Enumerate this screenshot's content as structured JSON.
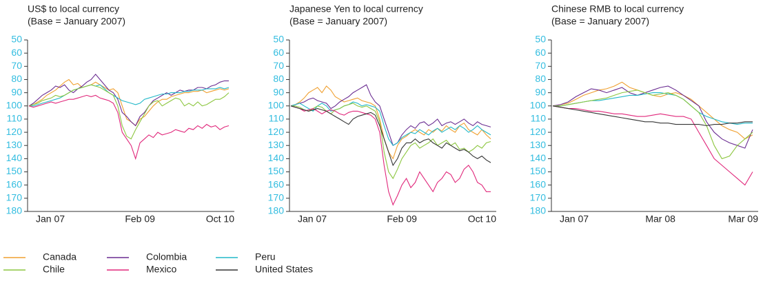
{
  "chart_data": [
    {
      "type": "line",
      "title": "US$ to local currency",
      "subtitle": "(Base = January 2007)",
      "y_inverted": true,
      "ylim": [
        50,
        180
      ],
      "yticks": [
        50,
        60,
        70,
        80,
        90,
        100,
        110,
        120,
        130,
        140,
        150,
        160,
        170,
        180
      ],
      "categories": [
        "Jan 07",
        null,
        null,
        null,
        null,
        null,
        null,
        null,
        null,
        null,
        null,
        null,
        null,
        null,
        null,
        null,
        null,
        null,
        null,
        null,
        null,
        null,
        null,
        null,
        null,
        "Feb 09",
        null,
        null,
        null,
        null,
        null,
        null,
        null,
        null,
        null,
        null,
        null,
        null,
        null,
        null,
        null,
        null,
        null,
        null,
        null,
        "Oct 10"
      ],
      "series": [
        {
          "color": "#f0a030",
          "values": [
            100,
            99,
            97,
            95,
            92,
            90,
            88,
            85,
            82,
            80,
            84,
            83,
            86,
            85,
            84,
            82,
            84,
            86,
            88,
            87,
            90,
            100,
            110,
            112,
            115,
            110,
            108,
            104,
            100,
            97,
            95,
            95,
            93,
            92,
            91,
            90,
            90,
            89,
            89,
            88,
            90,
            89,
            88,
            87,
            88,
            87
          ]
        },
        {
          "color": "#6a2c91",
          "values": [
            100,
            98,
            95,
            92,
            90,
            88,
            85,
            86,
            84,
            88,
            90,
            87,
            85,
            82,
            80,
            76,
            80,
            84,
            88,
            90,
            95,
            105,
            108,
            112,
            115,
            108,
            105,
            100,
            96,
            94,
            92,
            90,
            92,
            90,
            88,
            89,
            88,
            88,
            86,
            86,
            87,
            85,
            84,
            82,
            81,
            81
          ]
        },
        {
          "color": "#20b8c8",
          "values": [
            100,
            100,
            99,
            98,
            97,
            96,
            95,
            94,
            92,
            90,
            88,
            87,
            86,
            85,
            84,
            85,
            84,
            87,
            90,
            92,
            94,
            96,
            97,
            98,
            99,
            98,
            95,
            94,
            93,
            92,
            91,
            91,
            90,
            90,
            90,
            89,
            89,
            88,
            88,
            88,
            87,
            87,
            87,
            86,
            87,
            86
          ]
        },
        {
          "color": "#8cc63f",
          "values": [
            100,
            99,
            98,
            96,
            95,
            94,
            92,
            93,
            92,
            90,
            88,
            87,
            86,
            85,
            84,
            85,
            86,
            88,
            90,
            92,
            100,
            115,
            123,
            125,
            118,
            112,
            106,
            100,
            97,
            96,
            100,
            98,
            96,
            94,
            95,
            100,
            98,
            100,
            97,
            100,
            99,
            97,
            95,
            95,
            93,
            90
          ]
        },
        {
          "color": "#e0267a",
          "values": [
            100,
            101,
            100,
            99,
            98,
            97,
            98,
            97,
            96,
            95,
            95,
            94,
            93,
            92,
            93,
            92,
            94,
            95,
            96,
            98,
            105,
            120,
            125,
            130,
            140,
            128,
            125,
            122,
            124,
            120,
            122,
            121,
            120,
            118,
            119,
            120,
            117,
            118,
            115,
            117,
            114,
            116,
            115,
            118,
            116,
            115
          ]
        }
      ]
    },
    {
      "type": "line",
      "title": "Japanese Yen to local currency",
      "subtitle": "(Base = January 2007)",
      "y_inverted": true,
      "ylim": [
        50,
        180
      ],
      "yticks": [
        50,
        60,
        70,
        80,
        90,
        100,
        110,
        120,
        130,
        140,
        150,
        160,
        170,
        180
      ],
      "categories": [
        "Jan 07",
        null,
        null,
        null,
        null,
        null,
        null,
        null,
        null,
        null,
        null,
        null,
        null,
        null,
        null,
        null,
        null,
        null,
        null,
        null,
        null,
        null,
        null,
        null,
        null,
        "Feb 09",
        null,
        null,
        null,
        null,
        null,
        null,
        null,
        null,
        null,
        null,
        null,
        null,
        null,
        null,
        null,
        null,
        null,
        null,
        null,
        "Oct 10"
      ],
      "series": [
        {
          "name": "Canada",
          "color": "#f0a030",
          "values": [
            100,
            99,
            97,
            94,
            90,
            88,
            86,
            90,
            85,
            88,
            93,
            95,
            97,
            96,
            95,
            94,
            96,
            97,
            98,
            100,
            110,
            125,
            135,
            140,
            130,
            125,
            123,
            120,
            118,
            120,
            122,
            118,
            120,
            117,
            119,
            115,
            118,
            120,
            115,
            113,
            118,
            120,
            122,
            118,
            122,
            125
          ]
        },
        {
          "name": "Colombia",
          "color": "#6a2c91",
          "values": [
            100,
            99,
            98,
            97,
            95,
            94,
            96,
            97,
            98,
            102,
            100,
            97,
            95,
            93,
            90,
            88,
            86,
            84,
            92,
            97,
            100,
            110,
            120,
            130,
            128,
            122,
            118,
            115,
            117,
            113,
            112,
            115,
            113,
            110,
            115,
            113,
            112,
            114,
            112,
            110,
            113,
            115,
            112,
            114,
            115,
            116
          ]
        },
        {
          "name": "Peru",
          "color": "#20b8c8",
          "values": [
            100,
            99,
            98,
            100,
            102,
            104,
            100,
            98,
            100,
            104,
            103,
            102,
            100,
            99,
            97,
            98,
            100,
            99,
            100,
            101,
            104,
            115,
            125,
            130,
            128,
            124,
            122,
            120,
            121,
            118,
            120,
            122,
            119,
            117,
            120,
            118,
            116,
            118,
            115,
            117,
            120,
            118,
            115,
            118,
            120,
            122
          ]
        },
        {
          "name": "Chile",
          "color": "#8cc63f",
          "values": [
            100,
            100,
            101,
            103,
            104,
            102,
            100,
            101,
            104,
            106,
            103,
            102,
            100,
            99,
            98,
            100,
            101,
            100,
            102,
            104,
            112,
            135,
            150,
            155,
            148,
            140,
            135,
            130,
            128,
            132,
            130,
            128,
            125,
            130,
            128,
            126,
            130,
            128,
            133,
            132,
            135,
            133,
            130,
            132,
            128,
            127
          ]
        },
        {
          "name": "Mexico",
          "color": "#e0267a",
          "values": [
            100,
            101,
            102,
            104,
            103,
            102,
            104,
            106,
            104,
            103,
            104,
            106,
            107,
            105,
            104,
            104,
            105,
            106,
            107,
            110,
            120,
            145,
            165,
            175,
            168,
            160,
            155,
            162,
            158,
            150,
            155,
            160,
            165,
            158,
            155,
            150,
            152,
            158,
            155,
            148,
            145,
            150,
            158,
            160,
            165,
            165
          ]
        },
        {
          "name": "United States",
          "color": "#333333",
          "values": [
            100,
            101,
            102,
            103,
            104,
            103,
            102,
            103,
            104,
            106,
            108,
            110,
            112,
            114,
            110,
            108,
            107,
            106,
            105,
            107,
            115,
            125,
            135,
            145,
            140,
            132,
            128,
            128,
            125,
            128,
            126,
            125,
            128,
            130,
            132,
            128,
            130,
            132,
            134,
            133,
            135,
            138,
            140,
            138,
            141,
            143
          ]
        }
      ]
    },
    {
      "type": "line",
      "title": "Chinese RMB to local currency",
      "subtitle": "(Base = January 2007)",
      "y_inverted": true,
      "ylim": [
        50,
        180
      ],
      "yticks": [
        50,
        60,
        70,
        80,
        90,
        100,
        110,
        120,
        130,
        140,
        150,
        160,
        170,
        180
      ],
      "categories": [
        "Jan 07",
        null,
        null,
        null,
        null,
        null,
        null,
        null,
        null,
        null,
        null,
        null,
        null,
        null,
        "Mar 08",
        null,
        null,
        null,
        null,
        null,
        null,
        null,
        null,
        null,
        null,
        null,
        "Mar 09"
      ],
      "series": [
        {
          "color": "#f0a030",
          "values": [
            100,
            99,
            98,
            95,
            92,
            90,
            88,
            87,
            85,
            82,
            86,
            88,
            90,
            92,
            93,
            91,
            90,
            92,
            95,
            100,
            105,
            110,
            115,
            118,
            120,
            125,
            122
          ]
        },
        {
          "color": "#6a2c91",
          "values": [
            100,
            99,
            97,
            93,
            90,
            87,
            88,
            90,
            88,
            86,
            90,
            92,
            90,
            88,
            86,
            85,
            88,
            92,
            96,
            100,
            112,
            120,
            125,
            128,
            130,
            132,
            118
          ]
        },
        {
          "color": "#20b8c8",
          "values": [
            100,
            100,
            99,
            98,
            97,
            96,
            96,
            95,
            94,
            93,
            92,
            92,
            91,
            90,
            90,
            91,
            92,
            95,
            100,
            105,
            108,
            110,
            112,
            113,
            114,
            113,
            113
          ]
        },
        {
          "color": "#8cc63f",
          "values": [
            100,
            100,
            99,
            98,
            97,
            96,
            95,
            94,
            92,
            90,
            89,
            88,
            90,
            92,
            91,
            90,
            92,
            95,
            100,
            105,
            115,
            130,
            140,
            138,
            130,
            125,
            120
          ]
        },
        {
          "color": "#e0267a",
          "values": [
            100,
            101,
            102,
            102,
            103,
            104,
            104,
            105,
            106,
            106,
            107,
            108,
            108,
            107,
            106,
            107,
            108,
            108,
            110,
            120,
            130,
            140,
            145,
            150,
            155,
            160,
            150
          ]
        },
        {
          "color": "#333333",
          "values": [
            100,
            101,
            102,
            103,
            104,
            105,
            106,
            107,
            108,
            109,
            110,
            111,
            112,
            112,
            113,
            113,
            114,
            114,
            114,
            114,
            115,
            114,
            114,
            113,
            113,
            112,
            112
          ]
        }
      ]
    }
  ]
}
